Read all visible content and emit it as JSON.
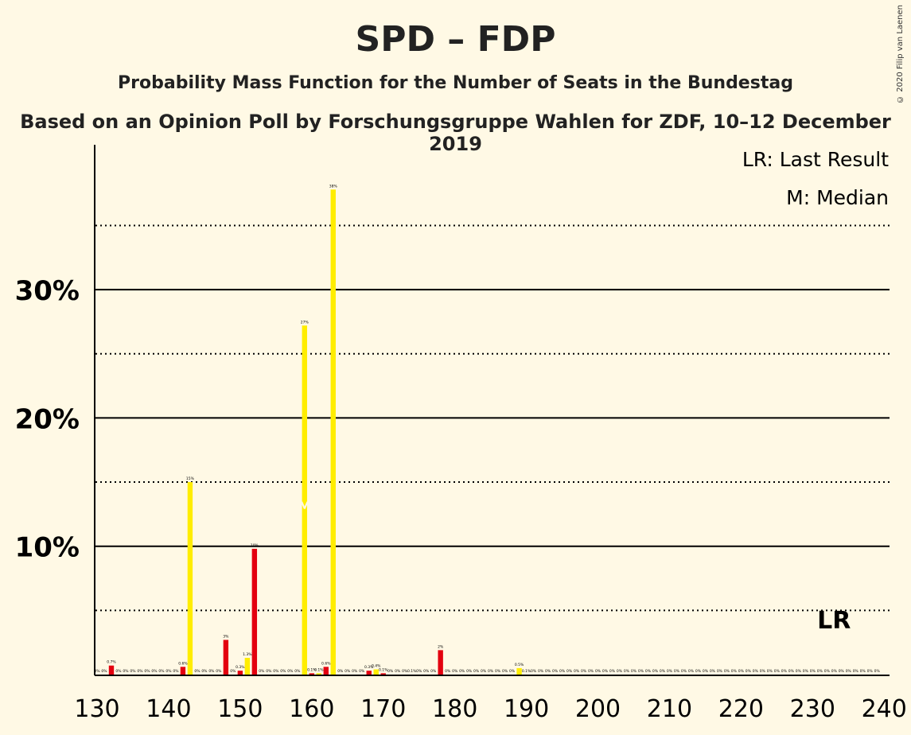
{
  "title": "SPD – FDP",
  "subtitle": "Probability Mass Function for the Number of Seats in the Bundestag",
  "subtitle2": "Based on an Opinion Poll by Forschungsgruppe Wahlen for ZDF, 10–12 December 2019",
  "copyright": "© 2020 Filip van Laenen",
  "legend": {
    "lr": "LR: Last Result",
    "median": "M: Median"
  },
  "markers": {
    "lr_label": "LR",
    "last_result_seat": 233,
    "median_seat": 159,
    "median_label": "M"
  },
  "colors": {
    "background": "#FFF9E5",
    "red": "#E3000F",
    "yellow": "#FFED00",
    "axis": "#000000"
  },
  "chart_data": {
    "type": "bar",
    "x_range": [
      130,
      240
    ],
    "xticks": [
      130,
      140,
      150,
      160,
      170,
      180,
      190,
      200,
      210,
      220,
      230,
      240
    ],
    "xtick_labels": [
      "130",
      "140",
      "150",
      "160",
      "170",
      "180",
      "190",
      "200",
      "210",
      "220",
      "230",
      "240"
    ],
    "ylim": [
      0,
      40
    ],
    "yticks": [
      10,
      20,
      30
    ],
    "ytick_labels": [
      "10%",
      "20%",
      "30%"
    ],
    "dotted_gridlines": [
      5,
      15,
      25,
      35
    ],
    "solid_gridlines": [
      10,
      20,
      30
    ],
    "values": [
      {
        "seat": 130,
        "value": 0,
        "label": "0%"
      },
      {
        "seat": 131,
        "value": 0,
        "label": "0%"
      },
      {
        "seat": 132,
        "value": 0.7,
        "label": "0.7%"
      },
      {
        "seat": 133,
        "value": 0,
        "label": "0%"
      },
      {
        "seat": 134,
        "value": 0,
        "label": "0%"
      },
      {
        "seat": 135,
        "value": 0,
        "label": "0%"
      },
      {
        "seat": 136,
        "value": 0,
        "label": "0%"
      },
      {
        "seat": 137,
        "value": 0,
        "label": "0%"
      },
      {
        "seat": 138,
        "value": 0,
        "label": "0%"
      },
      {
        "seat": 139,
        "value": 0,
        "label": "0%"
      },
      {
        "seat": 140,
        "value": 0,
        "label": "0%"
      },
      {
        "seat": 141,
        "value": 0,
        "label": "0%"
      },
      {
        "seat": 142,
        "value": 0.6,
        "label": "0.6%"
      },
      {
        "seat": 143,
        "value": 15,
        "label": "15%"
      },
      {
        "seat": 144,
        "value": 0,
        "label": "0%"
      },
      {
        "seat": 145,
        "value": 0,
        "label": "0%"
      },
      {
        "seat": 146,
        "value": 0,
        "label": "0%"
      },
      {
        "seat": 147,
        "value": 0,
        "label": "0%"
      },
      {
        "seat": 148,
        "value": 2.7,
        "label": "3%"
      },
      {
        "seat": 149,
        "value": 0,
        "label": "0%"
      },
      {
        "seat": 150,
        "value": 0.3,
        "label": "0.3%"
      },
      {
        "seat": 151,
        "value": 1.3,
        "label": "1.3%"
      },
      {
        "seat": 152,
        "value": 9.8,
        "label": "10%"
      },
      {
        "seat": 153,
        "value": 0,
        "label": "0%"
      },
      {
        "seat": 154,
        "value": 0,
        "label": "0%"
      },
      {
        "seat": 155,
        "value": 0,
        "label": "0%"
      },
      {
        "seat": 156,
        "value": 0,
        "label": "0%"
      },
      {
        "seat": 157,
        "value": 0,
        "label": "0%"
      },
      {
        "seat": 158,
        "value": 0,
        "label": "0%"
      },
      {
        "seat": 159,
        "value": 27.2,
        "label": "27%"
      },
      {
        "seat": 160,
        "value": 0.1,
        "label": "0.1%"
      },
      {
        "seat": 161,
        "value": 0.1,
        "label": "0.1%"
      },
      {
        "seat": 162,
        "value": 0.6,
        "label": "0.6%"
      },
      {
        "seat": 163,
        "value": 37.8,
        "label": "38%"
      },
      {
        "seat": 164,
        "value": 0,
        "label": "0%"
      },
      {
        "seat": 165,
        "value": 0,
        "label": "0%"
      },
      {
        "seat": 166,
        "value": 0,
        "label": "0%"
      },
      {
        "seat": 167,
        "value": 0,
        "label": "0%"
      },
      {
        "seat": 168,
        "value": 0.3,
        "label": "0.3%"
      },
      {
        "seat": 169,
        "value": 0.4,
        "label": "0.4%"
      },
      {
        "seat": 170,
        "value": 0.1,
        "label": "0.1%"
      },
      {
        "seat": 171,
        "value": 0,
        "label": "0%"
      },
      {
        "seat": 172,
        "value": 0,
        "label": "0%"
      },
      {
        "seat": 173,
        "value": 0,
        "label": "0%"
      },
      {
        "seat": 174,
        "value": 0,
        "label": "0.1%"
      },
      {
        "seat": 175,
        "value": 0,
        "label": "0%"
      },
      {
        "seat": 176,
        "value": 0,
        "label": "0%"
      },
      {
        "seat": 177,
        "value": 0,
        "label": "0%"
      },
      {
        "seat": 178,
        "value": 1.9,
        "label": "2%"
      },
      {
        "seat": 179,
        "value": 0,
        "label": "0%"
      },
      {
        "seat": 180,
        "value": 0,
        "label": "0%"
      },
      {
        "seat": 181,
        "value": 0,
        "label": "0%"
      },
      {
        "seat": 182,
        "value": 0,
        "label": "0%"
      },
      {
        "seat": 183,
        "value": 0,
        "label": "0%"
      },
      {
        "seat": 184,
        "value": 0,
        "label": "0%"
      },
      {
        "seat": 185,
        "value": 0,
        "label": "0%"
      },
      {
        "seat": 186,
        "value": 0,
        "label": "0%"
      },
      {
        "seat": 187,
        "value": 0,
        "label": "0%"
      },
      {
        "seat": 188,
        "value": 0,
        "label": "0%"
      },
      {
        "seat": 189,
        "value": 0.5,
        "label": "0.5%"
      },
      {
        "seat": 190,
        "value": 0,
        "label": "0.1%"
      },
      {
        "seat": 191,
        "value": 0,
        "label": "0%"
      },
      {
        "seat": 192,
        "value": 0,
        "label": "0%"
      },
      {
        "seat": 193,
        "value": 0,
        "label": "0%"
      },
      {
        "seat": 194,
        "value": 0,
        "label": "0%"
      },
      {
        "seat": 195,
        "value": 0,
        "label": "0%"
      },
      {
        "seat": 196,
        "value": 0,
        "label": "0%"
      },
      {
        "seat": 197,
        "value": 0,
        "label": "0%"
      },
      {
        "seat": 198,
        "value": 0,
        "label": "0%"
      },
      {
        "seat": 199,
        "value": 0,
        "label": "0%"
      },
      {
        "seat": 200,
        "value": 0,
        "label": "0%"
      },
      {
        "seat": 201,
        "value": 0,
        "label": "0%"
      },
      {
        "seat": 202,
        "value": 0,
        "label": "0%"
      },
      {
        "seat": 203,
        "value": 0,
        "label": "0%"
      },
      {
        "seat": 204,
        "value": 0,
        "label": "0%"
      },
      {
        "seat": 205,
        "value": 0,
        "label": "0%"
      },
      {
        "seat": 206,
        "value": 0,
        "label": "0%"
      },
      {
        "seat": 207,
        "value": 0,
        "label": "0%"
      },
      {
        "seat": 208,
        "value": 0,
        "label": "0%"
      },
      {
        "seat": 209,
        "value": 0,
        "label": "0%"
      },
      {
        "seat": 210,
        "value": 0,
        "label": "0%"
      },
      {
        "seat": 211,
        "value": 0,
        "label": "0%"
      },
      {
        "seat": 212,
        "value": 0,
        "label": "0%"
      },
      {
        "seat": 213,
        "value": 0,
        "label": "0%"
      },
      {
        "seat": 214,
        "value": 0,
        "label": "0%"
      },
      {
        "seat": 215,
        "value": 0,
        "label": "0%"
      },
      {
        "seat": 216,
        "value": 0,
        "label": "0%"
      },
      {
        "seat": 217,
        "value": 0,
        "label": "0%"
      },
      {
        "seat": 218,
        "value": 0,
        "label": "0%"
      },
      {
        "seat": 219,
        "value": 0,
        "label": "0%"
      },
      {
        "seat": 220,
        "value": 0,
        "label": "0%"
      },
      {
        "seat": 221,
        "value": 0,
        "label": "0%"
      },
      {
        "seat": 222,
        "value": 0,
        "label": "0%"
      },
      {
        "seat": 223,
        "value": 0,
        "label": "0%"
      },
      {
        "seat": 224,
        "value": 0,
        "label": "0%"
      },
      {
        "seat": 225,
        "value": 0,
        "label": "0%"
      },
      {
        "seat": 226,
        "value": 0,
        "label": "0%"
      },
      {
        "seat": 227,
        "value": 0,
        "label": "0%"
      },
      {
        "seat": 228,
        "value": 0,
        "label": "0%"
      },
      {
        "seat": 229,
        "value": 0,
        "label": "0%"
      },
      {
        "seat": 230,
        "value": 0,
        "label": "0%"
      },
      {
        "seat": 231,
        "value": 0,
        "label": "0%"
      },
      {
        "seat": 232,
        "value": 0,
        "label": "0%"
      },
      {
        "seat": 233,
        "value": 0,
        "label": "0%"
      },
      {
        "seat": 234,
        "value": 0,
        "label": "0%"
      },
      {
        "seat": 235,
        "value": 0,
        "label": "0%"
      },
      {
        "seat": 236,
        "value": 0,
        "label": "0%"
      },
      {
        "seat": 237,
        "value": 0,
        "label": "0%"
      },
      {
        "seat": 238,
        "value": 0,
        "label": "0%"
      },
      {
        "seat": 239,
        "value": 0,
        "label": "0%"
      }
    ]
  }
}
